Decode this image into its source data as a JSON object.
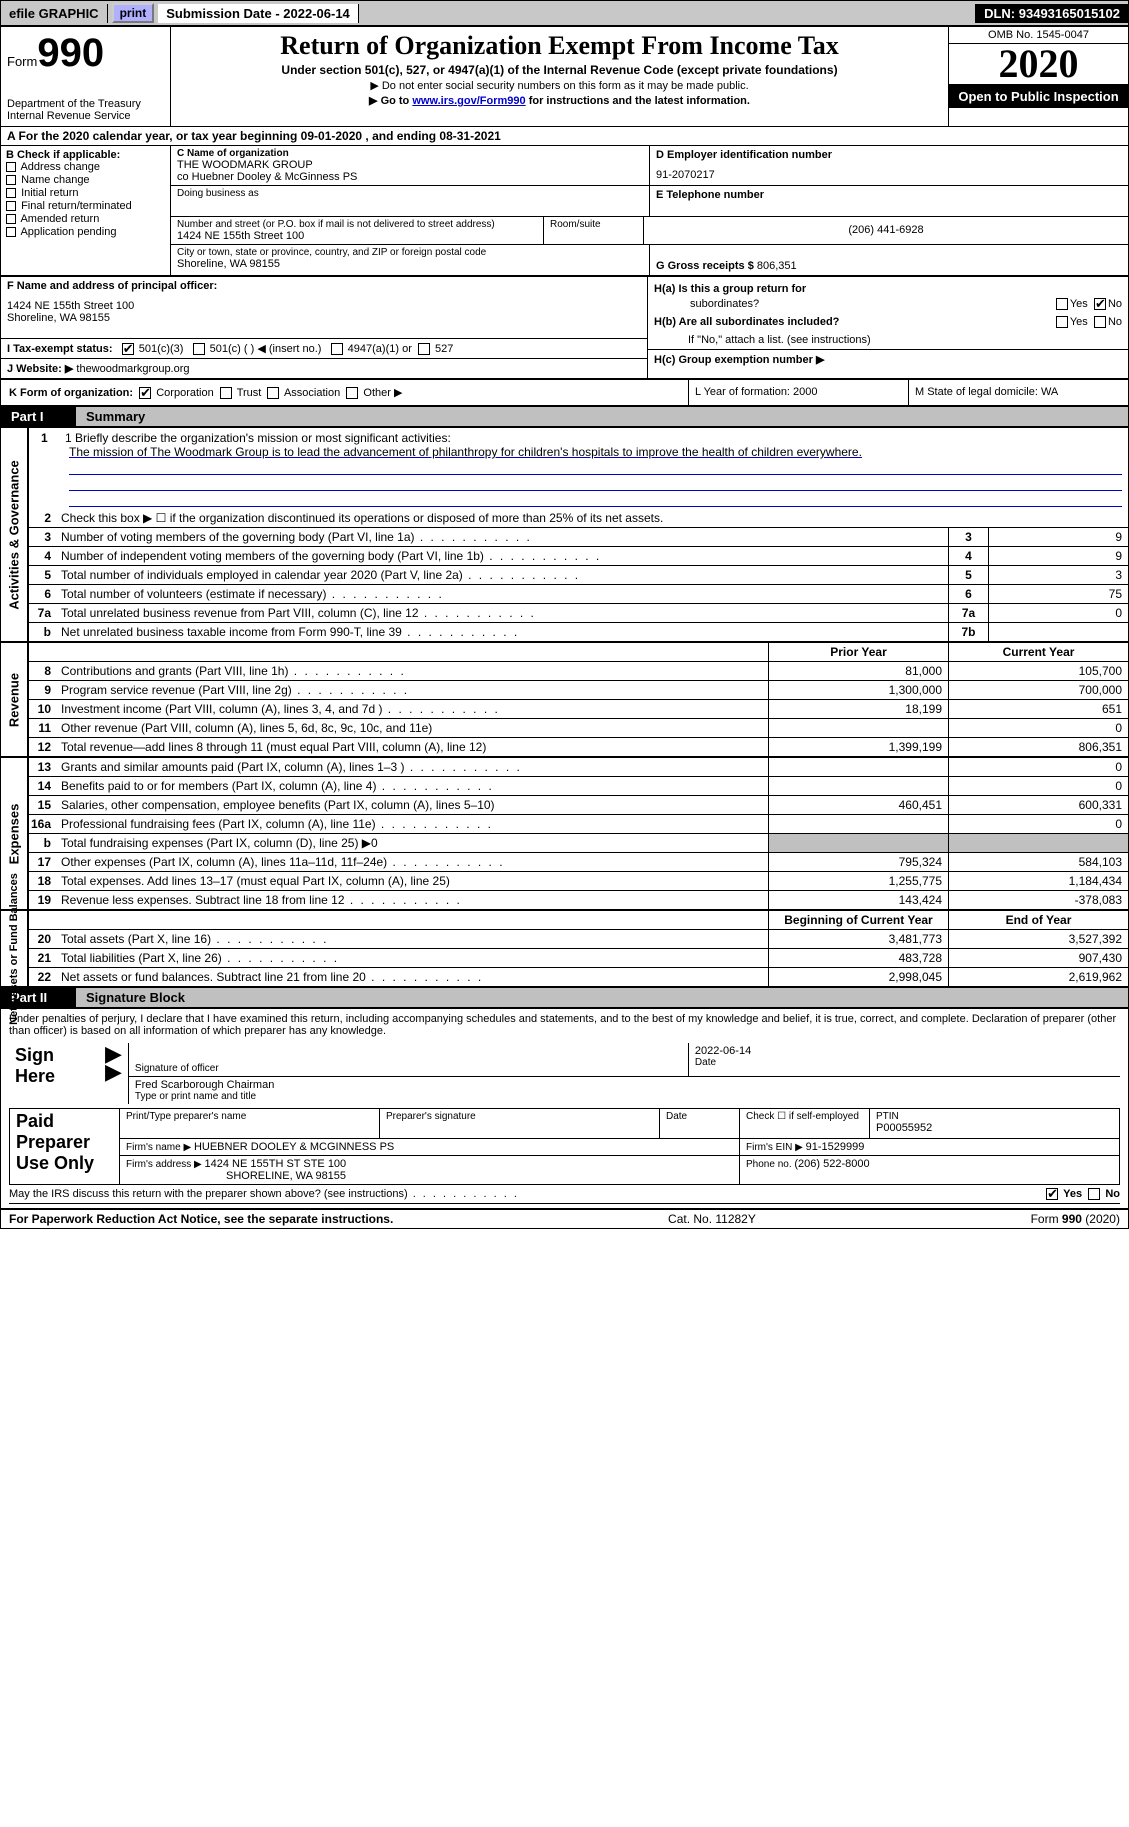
{
  "header": {
    "efile": "efile GRAPHIC",
    "print": "print",
    "subdate_lbl": "Submission Date - ",
    "subdate": "2022-06-14",
    "dln_lbl": "DLN: ",
    "dln": "93493165015102"
  },
  "top": {
    "form_lbl": "Form",
    "form_num": "990",
    "dept": "Department of the Treasury",
    "irs": "Internal Revenue Service",
    "title": "Return of Organization Exempt From Income Tax",
    "subtitle": "Under section 501(c), 527, or 4947(a)(1) of the Internal Revenue Code (except private foundations)",
    "note1": "▶ Do not enter social security numbers on this form as it may be made public.",
    "note2_pre": "▶ Go to ",
    "note2_link": "www.irs.gov/Form990",
    "note2_post": " for instructions and the latest information.",
    "omb": "OMB No. 1545-0047",
    "year": "2020",
    "otp": "Open to Public Inspection"
  },
  "period": {
    "prefix": "A For the 2020 calendar year, or tax year beginning ",
    "begin": "09-01-2020",
    "mid": " , and ending ",
    "end": "08-31-2021"
  },
  "blockB": {
    "hdr": "B Check if applicable:",
    "items": [
      "Address change",
      "Name change",
      "Initial return",
      "Final return/terminated",
      "Amended return",
      "Application pending"
    ]
  },
  "blockC": {
    "name_lbl": "C Name of organization",
    "name1": "THE WOODMARK GROUP",
    "name2": "co Huebner Dooley & McGinness PS",
    "dba_lbl": "Doing business as",
    "addr_lbl": "Number and street (or P.O. box if mail is not delivered to street address)",
    "room_lbl": "Room/suite",
    "addr": "1424 NE 155th Street 100",
    "city_lbl": "City or town, state or province, country, and ZIP or foreign postal code",
    "city": "Shoreline, WA  98155"
  },
  "blockD": {
    "ein_lbl": "D Employer identification number",
    "ein": "91-2070217",
    "tel_lbl": "E Telephone number",
    "tel": "(206) 441-6928",
    "gross_lbl": "G Gross receipts $ ",
    "gross": "806,351"
  },
  "blockF": {
    "lbl": "F  Name and address of principal officer:",
    "addr1": "1424 NE 155th Street 100",
    "addr2": "Shoreline, WA  98155"
  },
  "blockH": {
    "a_lbl": "H(a)  Is this a group return for",
    "a_lbl2": "subordinates?",
    "b_lbl": "H(b)  Are all subordinates included?",
    "b_note": "If \"No,\" attach a list. (see instructions)",
    "c_lbl": "H(c)  Group exemption number ▶",
    "yes": "Yes",
    "no": "No"
  },
  "blockI": {
    "lbl": "I   Tax-exempt status:",
    "opt1": "501(c)(3)",
    "opt2": "501(c) (  ) ◀ (insert no.)",
    "opt3": "4947(a)(1) or",
    "opt4": "527"
  },
  "blockJ": {
    "lbl": "J   Website: ▶ ",
    "val": "thewoodmarkgroup.org"
  },
  "blockK": {
    "lbl": "K Form of organization:",
    "opts": [
      "Corporation",
      "Trust",
      "Association",
      "Other ▶"
    ]
  },
  "blockLM": {
    "l": "L Year of formation: 2000",
    "m": "M State of legal domicile: WA"
  },
  "part1": {
    "label": "Part I",
    "title": "Summary"
  },
  "mission": {
    "lbl": "1   Briefly describe the organization's mission or most significant activities:",
    "text": "The mission of The Woodmark Group is to lead the advancement of philanthropy for children's hospitals to improve the health of children everywhere."
  },
  "lines_gov": [
    {
      "n": "2",
      "t": "Check this box ▶ ☐  if the organization discontinued its operations or disposed of more than 25% of its net assets.",
      "noval": true,
      "noborder": true
    },
    {
      "n": "3",
      "t": "Number of voting members of the governing body (Part VI, line 1a)",
      "c": "3",
      "v": "9",
      "dots": true
    },
    {
      "n": "4",
      "t": "Number of independent voting members of the governing body (Part VI, line 1b)",
      "c": "4",
      "v": "9",
      "dots": true
    },
    {
      "n": "5",
      "t": "Total number of individuals employed in calendar year 2020 (Part V, line 2a)",
      "c": "5",
      "v": "3",
      "dots": true
    },
    {
      "n": "6",
      "t": "Total number of volunteers (estimate if necessary)",
      "c": "6",
      "v": "75",
      "dots": true
    },
    {
      "n": "7a",
      "t": "Total unrelated business revenue from Part VIII, column (C), line 12",
      "c": "7a",
      "v": "0",
      "dots": true
    },
    {
      "n": "b",
      "t": "Net unrelated business taxable income from Form 990-T, line 39",
      "c": "7b",
      "v": "",
      "dots": true,
      "last": true
    }
  ],
  "twocol_hdr": {
    "prior": "Prior Year",
    "current": "Current Year"
  },
  "lines_rev": [
    {
      "n": "8",
      "t": "Contributions and grants (Part VIII, line 1h)",
      "p": "81,000",
      "c": "105,700",
      "dots": true
    },
    {
      "n": "9",
      "t": "Program service revenue (Part VIII, line 2g)",
      "p": "1,300,000",
      "c": "700,000",
      "dots": true
    },
    {
      "n": "10",
      "t": "Investment income (Part VIII, column (A), lines 3, 4, and 7d )",
      "p": "18,199",
      "c": "651",
      "dots": true
    },
    {
      "n": "11",
      "t": "Other revenue (Part VIII, column (A), lines 5, 6d, 8c, 9c, 10c, and 11e)",
      "p": "",
      "c": "0"
    },
    {
      "n": "12",
      "t": "Total revenue—add lines 8 through 11 (must equal Part VIII, column (A), line 12)",
      "p": "1,399,199",
      "c": "806,351",
      "last": true
    }
  ],
  "lines_exp": [
    {
      "n": "13",
      "t": "Grants and similar amounts paid (Part IX, column (A), lines 1–3 )",
      "p": "",
      "c": "0",
      "dots": true
    },
    {
      "n": "14",
      "t": "Benefits paid to or for members (Part IX, column (A), line 4)",
      "p": "",
      "c": "0",
      "dots": true
    },
    {
      "n": "15",
      "t": "Salaries, other compensation, employee benefits (Part IX, column (A), lines 5–10)",
      "p": "460,451",
      "c": "600,331"
    },
    {
      "n": "16a",
      "t": "Professional fundraising fees (Part IX, column (A), line 11e)",
      "p": "",
      "c": "0",
      "dots": true
    },
    {
      "n": "b",
      "t": "Total fundraising expenses (Part IX, column (D), line 25) ▶0",
      "p": "SHADE",
      "c": "SHADE"
    },
    {
      "n": "17",
      "t": "Other expenses (Part IX, column (A), lines 11a–11d, 11f–24e)",
      "p": "795,324",
      "c": "584,103",
      "dots": true
    },
    {
      "n": "18",
      "t": "Total expenses. Add lines 13–17 (must equal Part IX, column (A), line 25)",
      "p": "1,255,775",
      "c": "1,184,434"
    },
    {
      "n": "19",
      "t": "Revenue less expenses. Subtract line 18 from line 12",
      "p": "143,424",
      "c": "-378,083",
      "dots": true,
      "last": true
    }
  ],
  "twocol_hdr2": {
    "prior": "Beginning of Current Year",
    "current": "End of Year"
  },
  "lines_net": [
    {
      "n": "20",
      "t": "Total assets (Part X, line 16)",
      "p": "3,481,773",
      "c": "3,527,392",
      "dots": true
    },
    {
      "n": "21",
      "t": "Total liabilities (Part X, line 26)",
      "p": "483,728",
      "c": "907,430",
      "dots": true
    },
    {
      "n": "22",
      "t": "Net assets or fund balances. Subtract line 21 from line 20",
      "p": "2,998,045",
      "c": "2,619,962",
      "dots": true,
      "last": true
    }
  ],
  "vert": {
    "gov": "Activities & Governance",
    "rev": "Revenue",
    "exp": "Expenses",
    "net": "Net Assets or\nFund Balances"
  },
  "part2": {
    "label": "Part II",
    "title": "Signature Block"
  },
  "sig": {
    "decl": "Under penalties of perjury, I declare that I have examined this return, including accompanying schedules and statements, and to the best of my knowledge and belief, it is true, correct, and complete. Declaration of preparer (other than officer) is based on all information of which preparer has any knowledge.",
    "sign_here": "Sign Here",
    "sig_officer": "Signature of officer",
    "date_lbl": "Date",
    "date_val": "2022-06-14",
    "name": "Fred Scarborough  Chairman",
    "name_lbl": "Type or print name and title",
    "paid": "Paid Preparer Use Only",
    "prep_name_lbl": "Print/Type preparer's name",
    "prep_sig_lbl": "Preparer's signature",
    "chk_se": "Check ☐ if self-employed",
    "ptin_lbl": "PTIN",
    "ptin": "P00055952",
    "firm_name_lbl": "Firm's name    ▶ ",
    "firm_name": "HUEBNER DOOLEY & MCGINNESS PS",
    "firm_ein_lbl": "Firm's EIN ▶ ",
    "firm_ein": "91-1529999",
    "firm_addr_lbl": "Firm's address ▶ ",
    "firm_addr1": "1424 NE 155TH ST STE 100",
    "firm_addr2": "SHORELINE, WA  98155",
    "phone_lbl": "Phone no. ",
    "phone": "(206) 522-8000",
    "discuss": "May the IRS discuss this return with the preparer shown above? (see instructions)"
  },
  "footer": {
    "left": "For Paperwork Reduction Act Notice, see the separate instructions.",
    "mid": "Cat. No. 11282Y",
    "right": "Form 990 (2020)"
  }
}
